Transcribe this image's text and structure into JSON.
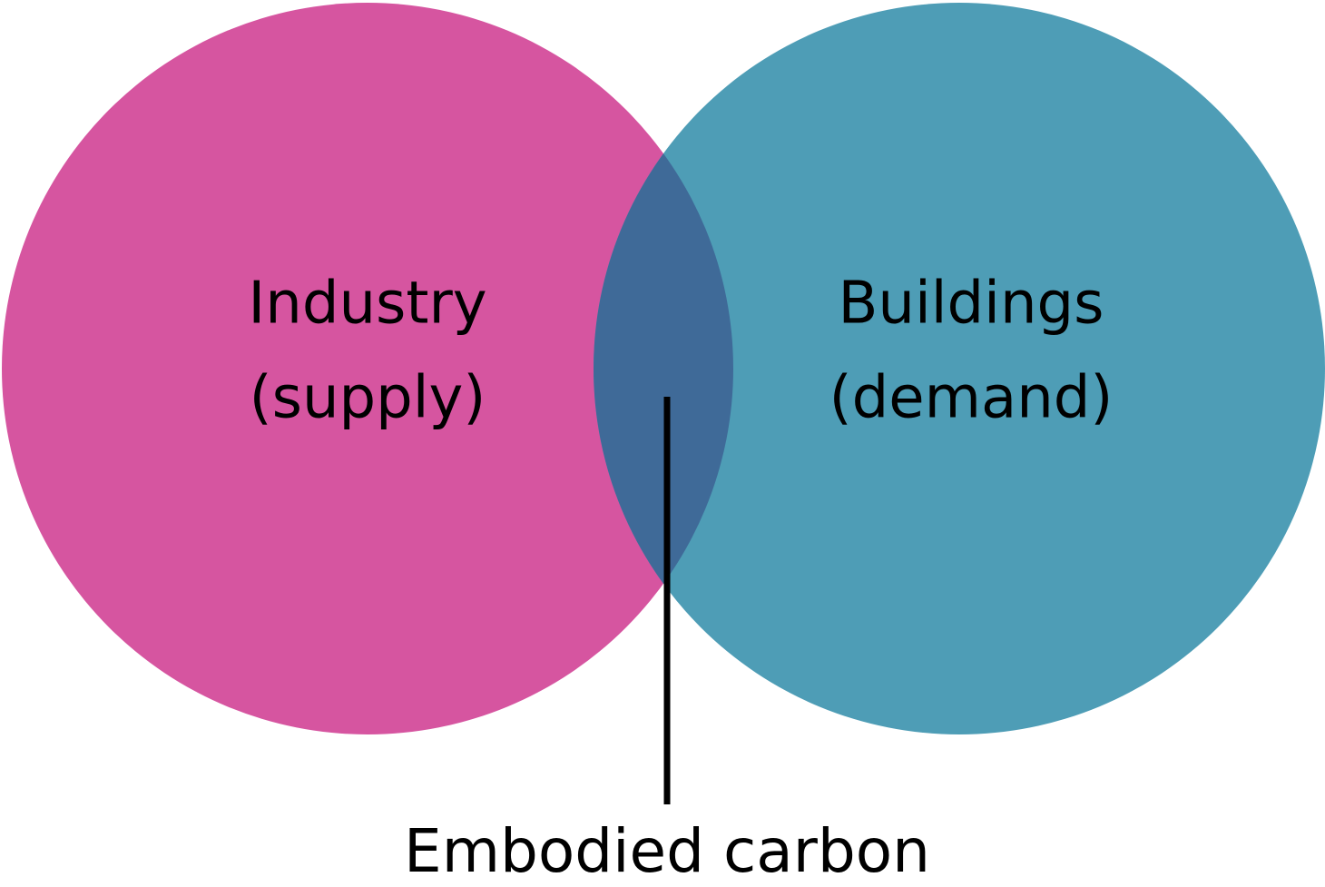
{
  "sets": [
    {
      "lines": [
        "Industry",
        "(supply)"
      ]
    },
    {
      "lines": [
        "Buildings",
        "(demand)"
      ]
    }
  ],
  "intersection": {
    "label": "Embodied carbon"
  }
}
